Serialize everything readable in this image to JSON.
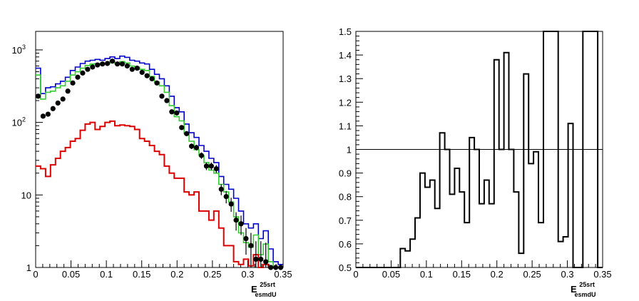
{
  "chart_data": [
    {
      "type": "histogram",
      "panel": "left",
      "y_scale": "log",
      "xlim": [
        0,
        0.35
      ],
      "ylim": [
        1,
        1800
      ],
      "x_ticks": [
        "0",
        "0.05",
        "0.1",
        "0.15",
        "0.2",
        "0.25",
        "0.3",
        "0.35"
      ],
      "y_ticks": [
        {
          "value": 1,
          "base": "1",
          "exp": ""
        },
        {
          "value": 10,
          "base": "10",
          "exp": ""
        },
        {
          "value": 100,
          "base": "10",
          "exp": "2"
        },
        {
          "value": 1000,
          "base": "10",
          "exp": "3"
        }
      ],
      "xlabel": {
        "main": "E",
        "sup": "25srt",
        "sub": "esmdU"
      },
      "grid": false,
      "bin_width": 0.007,
      "series": [
        {
          "style": "step",
          "color": "#0000cc",
          "values": [
            560,
            250,
            300,
            310,
            340,
            370,
            420,
            520,
            580,
            650,
            700,
            720,
            740,
            720,
            760,
            800,
            760,
            820,
            790,
            720,
            700,
            660,
            640,
            540,
            460,
            400,
            320,
            230,
            160,
            140,
            95,
            72,
            62,
            48,
            40,
            32,
            28,
            18,
            14,
            12,
            9,
            6,
            4,
            3.5,
            4,
            2.5,
            3.2,
            1.8,
            1.2,
            1.1
          ]
        },
        {
          "style": "step",
          "color": "#33cc33",
          "values": [
            450,
            210,
            260,
            270,
            300,
            320,
            370,
            450,
            500,
            560,
            610,
            640,
            650,
            630,
            650,
            700,
            650,
            690,
            660,
            600,
            580,
            540,
            520,
            430,
            360,
            320,
            260,
            170,
            120,
            105,
            70,
            55,
            42,
            35,
            28,
            22,
            20,
            14,
            11,
            8,
            5,
            3,
            2.2,
            1.9,
            2.8,
            1.5,
            2.1,
            1.2,
            1.0,
            1.0
          ]
        },
        {
          "style": "step",
          "color": "#dd0000",
          "values": [
            25,
            23,
            18,
            26,
            32,
            40,
            45,
            55,
            60,
            78,
            95,
            100,
            80,
            88,
            100,
            104,
            90,
            92,
            90,
            88,
            80,
            60,
            55,
            48,
            40,
            36,
            25,
            20,
            17,
            17,
            11,
            10,
            11,
            6,
            6,
            4.5,
            6,
            3.5,
            2,
            2,
            1.2,
            1.1,
            1.3,
            1.05,
            1.5,
            1.0,
            1.1,
            1.0,
            1.0,
            1.0
          ]
        },
        {
          "style": "points",
          "color": "#000000",
          "values": [
            230,
            122,
            130,
            155,
            185,
            210,
            270,
            350,
            420,
            480,
            540,
            580,
            620,
            640,
            650,
            700,
            640,
            640,
            600,
            540,
            560,
            490,
            440,
            400,
            350,
            230,
            200,
            140,
            135,
            85,
            70,
            47,
            45,
            35,
            25,
            25,
            23,
            12,
            9.5,
            7.5,
            4.5,
            4,
            2.5,
            2,
            1.3,
            1.3,
            1.2,
            1.0,
            1.0,
            1.0
          ]
        }
      ]
    },
    {
      "type": "histogram",
      "panel": "right",
      "y_scale": "linear",
      "xlim": [
        0,
        0.35
      ],
      "ylim": [
        0.5,
        1.5
      ],
      "x_ticks": [
        "0",
        "0.05",
        "0.1",
        "0.15",
        "0.2",
        "0.25",
        "0.3",
        "0.35"
      ],
      "y_ticks": [
        "0.5",
        "0.6",
        "0.7",
        "0.8",
        "0.9",
        "1",
        "1.1",
        "1.2",
        "1.3",
        "1.4",
        "1.5"
      ],
      "xlabel": {
        "main": "E",
        "sup": "25srt",
        "sub": "esmdU"
      },
      "grid": false,
      "reference_line": 1.0,
      "bin_width": 0.007,
      "values": [
        0.5,
        0.5,
        0.5,
        0.5,
        0.5,
        0.5,
        0.5,
        0.5,
        0.5,
        0.58,
        0.57,
        0.62,
        0.71,
        0.9,
        0.84,
        0.87,
        0.75,
        1.07,
        1.0,
        0.81,
        0.92,
        0.82,
        0.69,
        1.05,
        1.0,
        0.77,
        0.87,
        0.77,
        1.38,
        1.0,
        1.41,
        1.0,
        0.82,
        0.56,
        1.32,
        0.94,
        0.99,
        0.69,
        1.5,
        1.5,
        1.5,
        0.61,
        0.63,
        1.11,
        0.5,
        0.5,
        1.5,
        1.5,
        1.5,
        0.5
      ]
    }
  ]
}
